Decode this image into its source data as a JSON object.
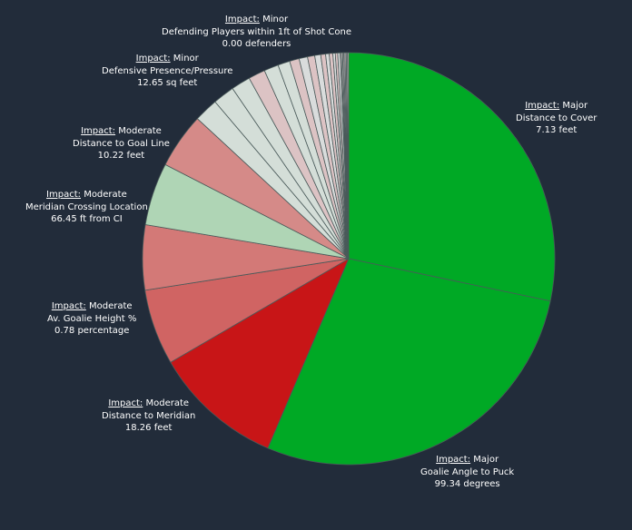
{
  "chart_data": {
    "type": "pie",
    "slices": [
      {
        "impact": "Major",
        "feature": "Distance to Cover",
        "value_text": "7.13 feet",
        "share": 0.3,
        "color": "#00a925"
      },
      {
        "impact": "Major",
        "feature": "Goalie Angle to Puck",
        "value_text": "99.34 degrees",
        "share": 0.298,
        "color": "#00a925"
      },
      {
        "impact": "Moderate",
        "feature": "Distance to Meridian",
        "value_text": "18.26 feet",
        "share": 0.108,
        "color": "#c81517"
      },
      {
        "impact": "Moderate",
        "feature": "Av. Goalie Height %",
        "value_text": "0.78 percentage",
        "share": 0.063,
        "color": "#d06463"
      },
      {
        "impact": "Moderate",
        "feature": "Meridian Crossing Location",
        "value_text": "66.45 ft from CI",
        "share": 0.054,
        "color": "#d37977"
      },
      {
        "impact": "Moderate",
        "feature": "",
        "value_text": "",
        "share": 0.052,
        "color": "#afd5b5"
      },
      {
        "impact": "Moderate",
        "feature": "Distance to Goal Line",
        "value_text": "10.22 feet",
        "share": 0.046,
        "color": "#d58a88"
      },
      {
        "impact": "",
        "feature": "",
        "value_text": "",
        "share": 0.02,
        "color": "#d4ded8"
      },
      {
        "impact": "",
        "feature": "",
        "value_text": "",
        "share": 0.018,
        "color": "#d4ded8"
      },
      {
        "impact": "",
        "feature": "",
        "value_text": "",
        "share": 0.016,
        "color": "#d4ded8"
      },
      {
        "impact": "Minor",
        "feature": "Defensive Presence/Pressure",
        "value_text": "12.65 sq feet",
        "share": 0.014,
        "color": "#dcc3c4"
      },
      {
        "impact": "",
        "feature": "",
        "value_text": "",
        "share": 0.012,
        "color": "#d4ded8"
      },
      {
        "impact": "",
        "feature": "",
        "value_text": "",
        "share": 0.01,
        "color": "#d4ded8"
      },
      {
        "impact": "",
        "feature": "",
        "value_text": "",
        "share": 0.008,
        "color": "#dcc3c4"
      },
      {
        "impact": "",
        "feature": "",
        "value_text": "",
        "share": 0.007,
        "color": "#d9dcdc"
      },
      {
        "impact": "",
        "feature": "",
        "value_text": "",
        "share": 0.006,
        "color": "#dcc3c4"
      },
      {
        "impact": "",
        "feature": "",
        "value_text": "",
        "share": 0.005,
        "color": "#d9dcdc"
      },
      {
        "impact": "",
        "feature": "",
        "value_text": "",
        "share": 0.004,
        "color": "#dcc3c4"
      },
      {
        "impact": "",
        "feature": "",
        "value_text": "",
        "share": 0.003,
        "color": "#d9dcdc"
      },
      {
        "impact": "",
        "feature": "",
        "value_text": "",
        "share": 0.003,
        "color": "#dcc3c4"
      },
      {
        "impact": "",
        "feature": "",
        "value_text": "",
        "share": 0.002,
        "color": "#d9dcdc"
      },
      {
        "impact": "",
        "feature": "",
        "value_text": "",
        "share": 0.002,
        "color": "#dcc3c4"
      },
      {
        "impact": "",
        "feature": "",
        "value_text": "",
        "share": 0.002,
        "color": "#d9dcdc"
      },
      {
        "impact": "",
        "feature": "",
        "value_text": "",
        "share": 0.001,
        "color": "#dcc3c4"
      },
      {
        "impact": "",
        "feature": "",
        "value_text": "",
        "share": 0.001,
        "color": "#d9dcdc"
      },
      {
        "impact": "",
        "feature": "",
        "value_text": "",
        "share": 0.001,
        "color": "#dcc3c4"
      },
      {
        "impact": "",
        "feature": "",
        "value_text": "",
        "share": 0.001,
        "color": "#d9dcdc"
      },
      {
        "impact": "",
        "feature": "",
        "value_text": "",
        "share": 0.001,
        "color": "#dcc3c4"
      },
      {
        "impact": "",
        "feature": "",
        "value_text": "",
        "share": 0.001,
        "color": "#d9dcdc"
      },
      {
        "impact": "Minor",
        "feature": "Defending Players within 1ft of Shot Cone",
        "value_text": "0.00 defenders",
        "share": 0.001,
        "color": "#dcc3c4"
      }
    ],
    "labels": [
      {
        "prefix": "Impact:",
        "impact": "Major",
        "feature": "Distance to Cover",
        "value": "7.13 feet"
      },
      {
        "prefix": "Impact:",
        "impact": "Major",
        "feature": "Goalie Angle to Puck",
        "value": "99.34 degrees"
      },
      {
        "prefix": "Impact:",
        "impact": "Moderate",
        "feature": "Distance to Meridian",
        "value": "18.26 feet"
      },
      {
        "prefix": "Impact:",
        "impact": "Moderate",
        "feature": "Av. Goalie Height %",
        "value": "0.78 percentage"
      },
      {
        "prefix": "Impact:",
        "impact": "Moderate",
        "feature": "Meridian Crossing Location",
        "value": "66.45 ft from CI"
      },
      {
        "prefix": "Impact:",
        "impact": "Moderate",
        "feature": "Distance to Goal Line",
        "value": "10.22 feet"
      },
      {
        "prefix": "Impact:",
        "impact": "Minor",
        "feature": "Defensive Presence/Pressure",
        "value": "12.65 sq feet"
      },
      {
        "prefix": "Impact:",
        "impact": "Minor",
        "feature": "Defending Players within 1ft of Shot Cone",
        "value": "0.00 defenders"
      }
    ],
    "title": "",
    "legend": "none",
    "colors": {
      "background": "#222c3a",
      "text": "#ffffff",
      "slice_border": "#4a5a5a"
    }
  }
}
